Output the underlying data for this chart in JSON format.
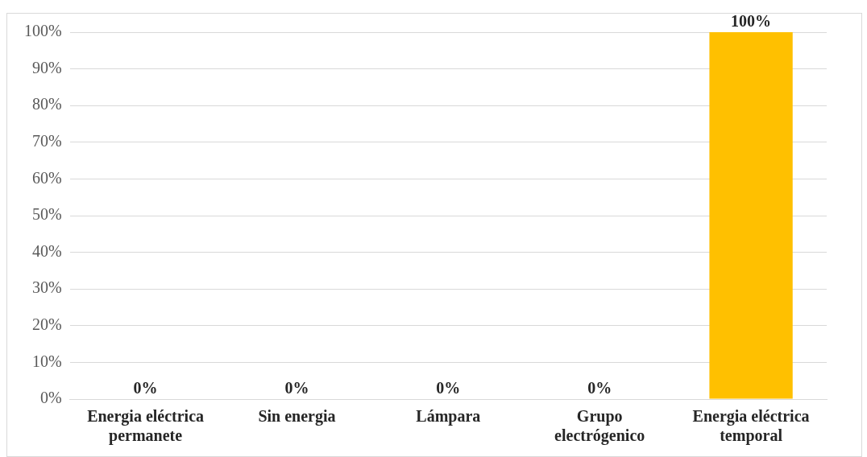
{
  "chart_data": {
    "type": "bar",
    "categories": [
      "Energia eléctrica permanete",
      "Sin energia",
      "Lámpara",
      "Grupo electrógenico",
      "Energia eléctrica temporal"
    ],
    "values": [
      0,
      0,
      0,
      0,
      100
    ],
    "color": "#ffc000",
    "value_labels": [
      "0%",
      "0%",
      "0%",
      "0%",
      "100%"
    ],
    "ylim": [
      0,
      100
    ],
    "yticks": [
      {
        "value": 0,
        "label": "0%"
      },
      {
        "value": 10,
        "label": "10%"
      },
      {
        "value": 20,
        "label": "20%"
      },
      {
        "value": 30,
        "label": "30%"
      },
      {
        "value": 40,
        "label": "40%"
      },
      {
        "value": 50,
        "label": "50%"
      },
      {
        "value": 60,
        "label": "60%"
      },
      {
        "value": 70,
        "label": "70%"
      },
      {
        "value": 80,
        "label": "80%"
      },
      {
        "value": 90,
        "label": "90%"
      },
      {
        "value": 100,
        "label": "100%"
      }
    ],
    "grid": "y",
    "legend": false
  }
}
